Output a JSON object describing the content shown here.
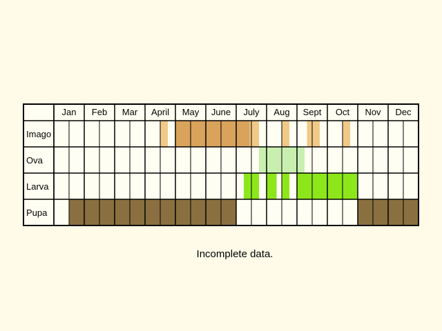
{
  "months": [
    "Jan",
    "Feb",
    "Mar",
    "April",
    "May",
    "June",
    "July",
    "Aug",
    "Sept",
    "Oct",
    "Nov",
    "Dec"
  ],
  "note": "Incomplete data.",
  "colors": {
    "background": "#fffbe8",
    "cell": "#fffef2",
    "grid": "#000000",
    "imago": "#d9a35b",
    "imago_light": "#f1c987",
    "ova": "#c9efb0",
    "larva": "#8de61a",
    "pupa": "#8a7040"
  },
  "stages": [
    {
      "key": "imago",
      "label": "Imago",
      "spans": [
        {
          "start": 3.5,
          "end": 3.75,
          "color": "imago_light"
        },
        {
          "start": 4.0,
          "end": 6.45,
          "color": "imago"
        },
        {
          "start": 6.45,
          "end": 6.75,
          "color": "imago_light"
        },
        {
          "start": 7.5,
          "end": 7.75,
          "color": "imago_light"
        },
        {
          "start": 8.33,
          "end": 8.75,
          "color": "imago_light"
        },
        {
          "start": 9.5,
          "end": 9.75,
          "color": "imago_light"
        }
      ]
    },
    {
      "key": "ova",
      "label": "Ova",
      "spans": [
        {
          "start": 6.75,
          "end": 8.25,
          "color": "ova"
        }
      ]
    },
    {
      "key": "larva",
      "label": "Larva",
      "spans": [
        {
          "start": 6.25,
          "end": 6.75,
          "color": "larva"
        },
        {
          "start": 7.0,
          "end": 7.33,
          "color": "larva"
        },
        {
          "start": 7.5,
          "end": 7.75,
          "color": "larva"
        },
        {
          "start": 8.0,
          "end": 9.0,
          "color": "larva"
        },
        {
          "start": 9.0,
          "end": 10.0,
          "color": "larva"
        }
      ]
    },
    {
      "key": "pupa",
      "label": "Pupa",
      "spans": [
        {
          "start": 0.5,
          "end": 6.0,
          "color": "pupa"
        },
        {
          "start": 10.0,
          "end": 12.0,
          "color": "pupa"
        }
      ]
    }
  ]
}
